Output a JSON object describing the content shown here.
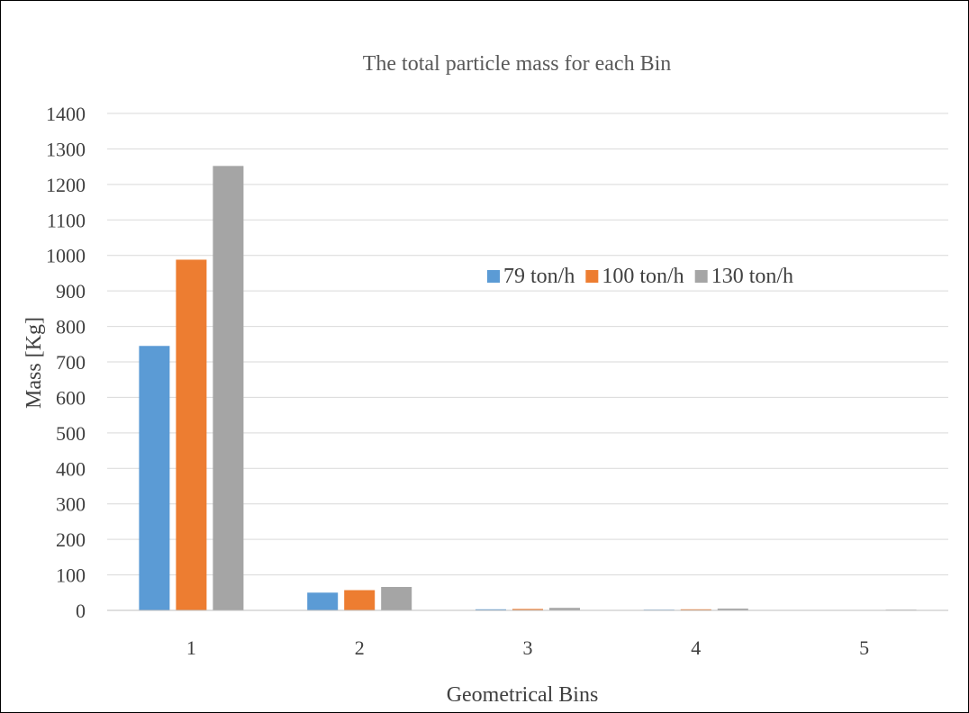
{
  "chart_data": {
    "type": "bar",
    "title": "The total particle mass for each Bin",
    "xlabel": "Geometrical Bins",
    "ylabel": "Mass [Kg]",
    "categories": [
      "1",
      "2",
      "3",
      "4",
      "5"
    ],
    "ylim": [
      0,
      1400
    ],
    "yticks": [
      0,
      100,
      200,
      300,
      400,
      500,
      600,
      700,
      800,
      900,
      1000,
      1100,
      1200,
      1300,
      1400
    ],
    "grid": true,
    "legend_position": "right",
    "series": [
      {
        "name": "79 ton/h",
        "color": "#5B9BD5",
        "values": [
          745,
          50,
          3,
          2,
          1
        ]
      },
      {
        "name": "100 ton/h",
        "color": "#ED7D31",
        "values": [
          988,
          57,
          4,
          3,
          1
        ]
      },
      {
        "name": "130 ton/h",
        "color": "#A5A5A5",
        "values": [
          1252,
          66,
          7,
          5,
          2
        ]
      }
    ]
  }
}
